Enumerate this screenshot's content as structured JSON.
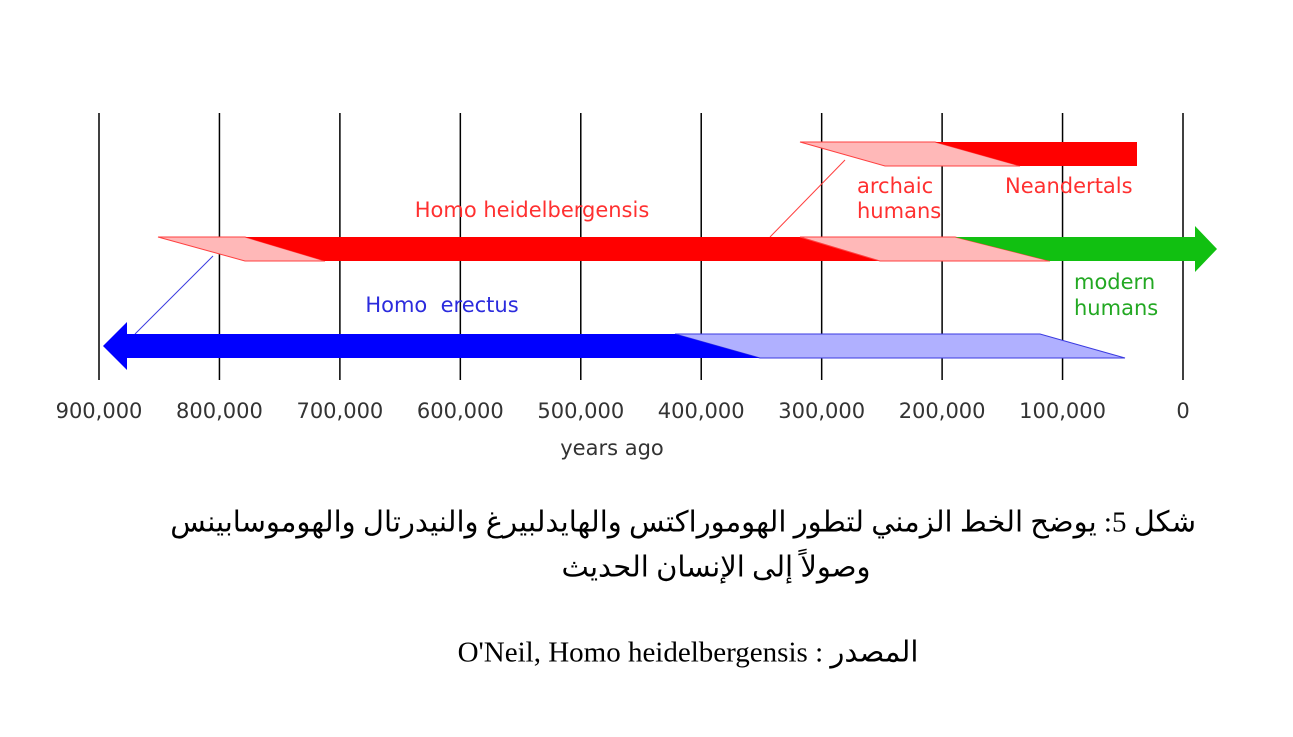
{
  "chart_data": {
    "type": "timeline",
    "xlabel": "years ago",
    "xlim": [
      900000,
      0
    ],
    "xticks": [
      {
        "value": 900000,
        "label": "900,000"
      },
      {
        "value": 800000,
        "label": "800,000"
      },
      {
        "value": 700000,
        "label": "700,000"
      },
      {
        "value": 600000,
        "label": "600,000"
      },
      {
        "value": 500000,
        "label": "500,000"
      },
      {
        "value": 400000,
        "label": "400,000"
      },
      {
        "value": 300000,
        "label": "300,000"
      },
      {
        "value": 200000,
        "label": "200,000"
      },
      {
        "value": 100000,
        "label": "100,000"
      },
      0
    ],
    "labels": {
      "heidelbergensis": "Homo heidelbergensis",
      "erectus": "Homo  erectus",
      "archaic": [
        "archaic",
        "humans"
      ],
      "neandertals": "Neandertals",
      "modern": [
        "modern",
        "humans"
      ]
    }
  },
  "caption": {
    "lines": [
      "شكل 5: يوضح الخط الزمني لتطور الهوموراكتس والهايدلبيرغ والنيدرتال والهوموسابينس",
      "وصولاً إلى الإنسان الحديث"
    ],
    "source": "المصدر : O'Neil, Homo heidelbergensis"
  }
}
